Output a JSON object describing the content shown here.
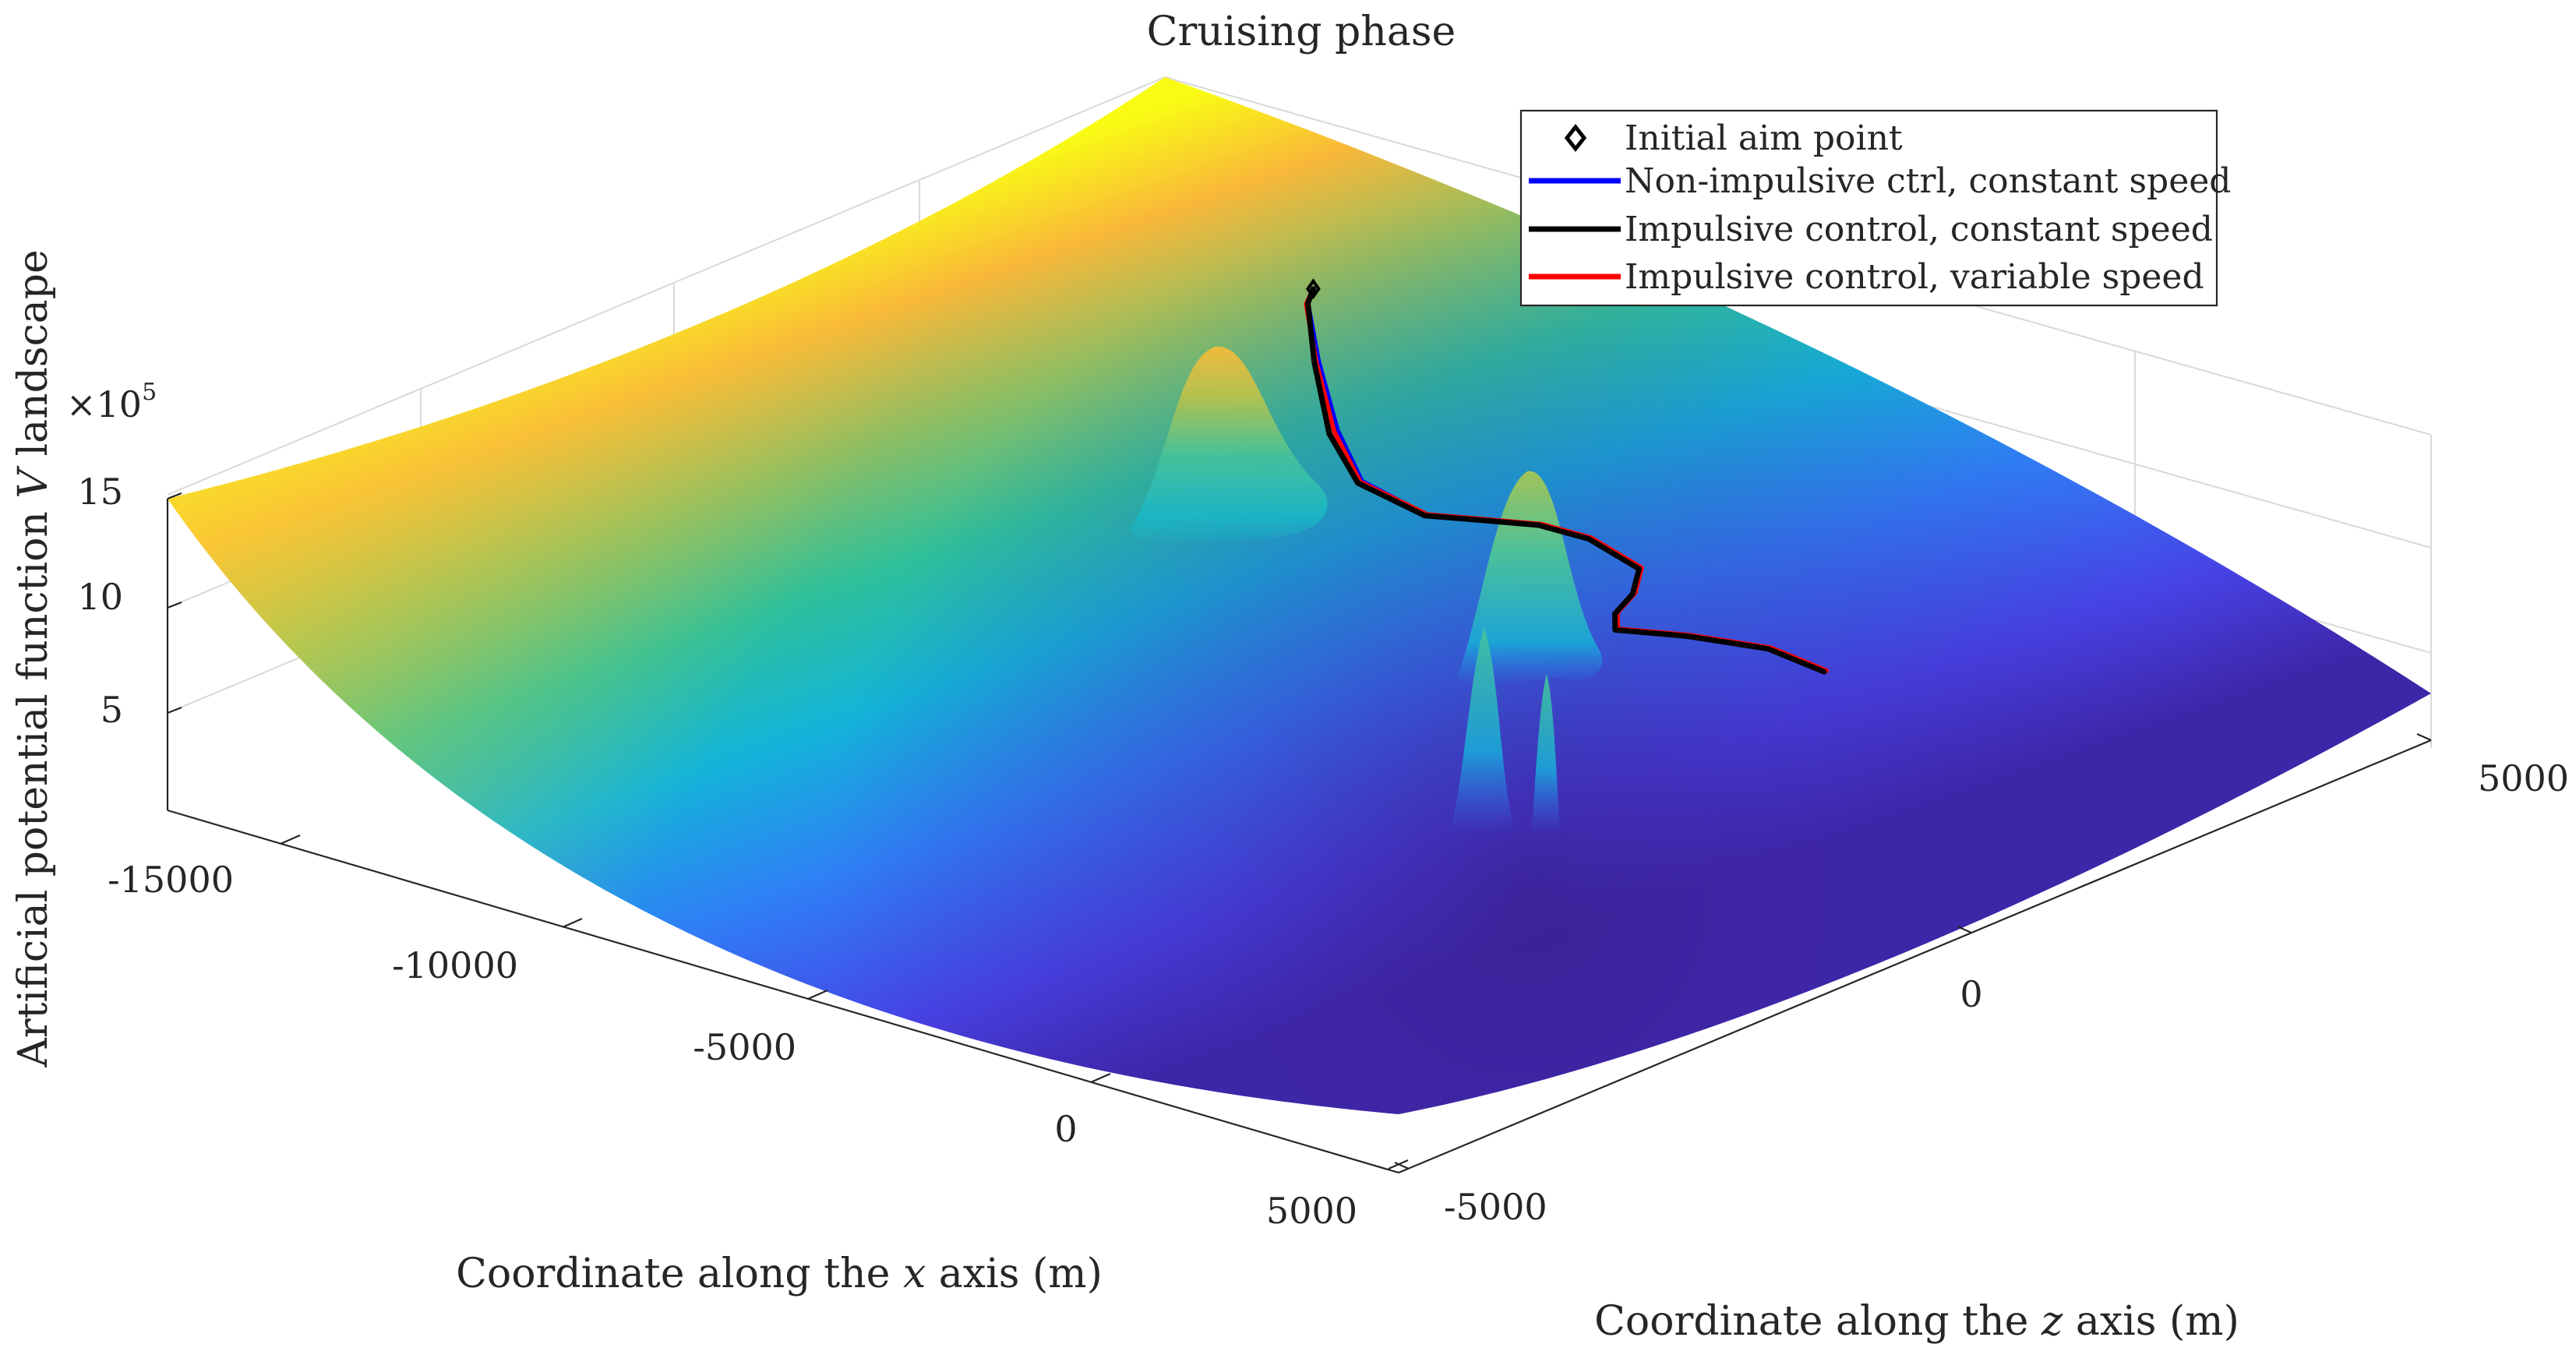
{
  "chart_data": {
    "type": "surface",
    "title": "Cruising phase",
    "xlabel": "Coordinate along the x axis (m)",
    "zlabel": "Coordinate along the z axis (m)",
    "vlabel": "Artificial potential function V landscape",
    "v_exponent_label": "×10^5",
    "x_ticks": [
      -15000,
      -10000,
      -5000,
      0,
      5000
    ],
    "x_tick_labels": [
      "-15000",
      "-10000",
      "-5000",
      "0",
      "5000"
    ],
    "z_ticks": [
      -5000,
      0,
      5000
    ],
    "z_tick_labels": [
      "-5000",
      "0",
      "5000"
    ],
    "v_ticks": [
      5,
      10,
      15
    ],
    "v_tick_labels": [
      "5",
      "10",
      "15"
    ],
    "x_range": [
      -17000,
      5000
    ],
    "z_range": [
      -5500,
      7000
    ],
    "v_range_e5": [
      0,
      30
    ],
    "grid": true,
    "colormap": [
      "#3e26a8",
      "#4743e6",
      "#2f7ff6",
      "#13b4d8",
      "#2ec09a",
      "#91be61",
      "#f9b839",
      "#f9fb15"
    ],
    "legend_location": "top-right",
    "legend": [
      {
        "label": "Initial aim point",
        "marker": "diamond",
        "color": "#000000"
      },
      {
        "label": "Non-impulsive ctrl, constant speed",
        "color": "#0000ff"
      },
      {
        "label": "Impulsive control, constant speed",
        "color": "#000000"
      },
      {
        "label": "Impulsive control, variable speed",
        "color": "#ff0000"
      }
    ],
    "obstacle_peaks": [
      {
        "x": -9000,
        "z": 3600,
        "peak_v_e5": 5.3
      },
      {
        "x": -6500,
        "z": 5500,
        "peak_v_e5": 4.3
      },
      {
        "x": -5000,
        "z": 4150,
        "peak_v_e5": 2.9
      },
      {
        "x": -3800,
        "z": 5050,
        "peak_v_e5": 2.2
      }
    ],
    "series": [
      {
        "name": "Impulsive control, constant speed",
        "color": "#000000",
        "points": [
          [
            -13500,
            6000,
            8.4
          ],
          [
            -13300,
            5800,
            8.2
          ],
          [
            -12300,
            5200,
            7.2
          ],
          [
            -11000,
            4500,
            6.0
          ],
          [
            -9900,
            4100,
            5.2
          ],
          [
            -8700,
            4100,
            4.6
          ],
          [
            -8200,
            4400,
            4.3
          ],
          [
            -7700,
            4800,
            3.8
          ],
          [
            -7100,
            5000,
            3.3
          ],
          [
            -6200,
            5000,
            2.6
          ],
          [
            -5800,
            4650,
            2.3
          ],
          [
            -5600,
            4300,
            2.1
          ],
          [
            -5300,
            4100,
            1.9
          ],
          [
            -4600,
            4500,
            1.5
          ],
          [
            -3600,
            4800,
            1.2
          ],
          [
            -2600,
            4800,
            0.9
          ]
        ]
      },
      {
        "name": "Non-impulsive ctrl, constant speed",
        "color": "#0000ff",
        "points": [
          [
            -13500,
            6000,
            8.4
          ],
          [
            -13300,
            5800,
            8.2
          ],
          [
            -12300,
            5250,
            7.2
          ],
          [
            -11000,
            4600,
            6.0
          ],
          [
            -9900,
            4150,
            5.2
          ],
          [
            -8700,
            4120,
            4.6
          ],
          [
            -8200,
            4420,
            4.3
          ],
          [
            -7700,
            4820,
            3.8
          ],
          [
            -7100,
            5020,
            3.3
          ],
          [
            -6200,
            5020,
            2.6
          ],
          [
            -5800,
            4670,
            2.3
          ],
          [
            -5600,
            4320,
            2.1
          ],
          [
            -5300,
            4120,
            1.9
          ],
          [
            -4600,
            4520,
            1.5
          ],
          [
            -3600,
            4820,
            1.2
          ],
          [
            -2600,
            4820,
            0.9
          ]
        ]
      },
      {
        "name": "Impulsive control, variable speed",
        "color": "#ff0000",
        "points": [
          [
            -13500,
            6000,
            8.4
          ],
          [
            -13300,
            5780,
            8.2
          ],
          [
            -12300,
            5220,
            7.2
          ],
          [
            -11000,
            4560,
            6.0
          ],
          [
            -9900,
            4130,
            5.2
          ],
          [
            -8700,
            4130,
            4.6
          ],
          [
            -8200,
            4430,
            4.3
          ],
          [
            -7700,
            4830,
            3.8
          ],
          [
            -7100,
            5030,
            3.3
          ],
          [
            -6200,
            5030,
            2.6
          ],
          [
            -5800,
            4680,
            2.3
          ],
          [
            -5600,
            4330,
            2.1
          ],
          [
            -5300,
            4130,
            1.9
          ],
          [
            -4600,
            4530,
            1.5
          ],
          [
            -3600,
            4830,
            1.2
          ],
          [
            -2600,
            4830,
            0.9
          ]
        ]
      }
    ],
    "initial_aim_point": {
      "x": -13500,
      "z": 6000,
      "v_e5": 8.4
    }
  }
}
